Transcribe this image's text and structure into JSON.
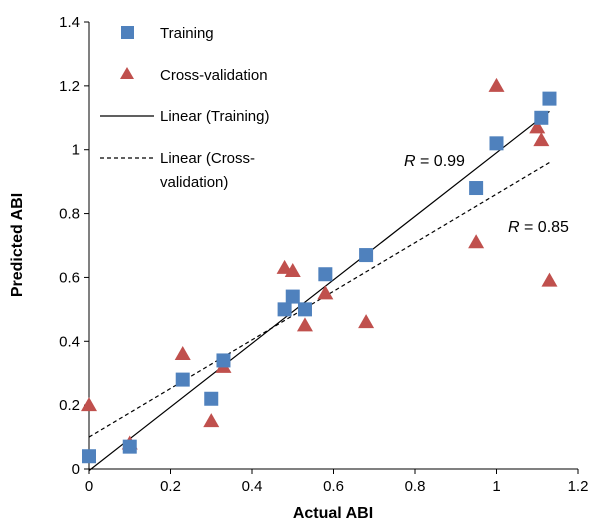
{
  "chart_data": {
    "type": "scatter",
    "xlabel": "Actual ABI",
    "ylabel": "Predicted ABI",
    "xlim": [
      0,
      1.2
    ],
    "ylim": [
      0,
      1.4
    ],
    "x_ticks": [
      "0",
      "0.2",
      "0.4",
      "0.6",
      "0.8",
      "1",
      "1.2"
    ],
    "y_ticks": [
      "0",
      "0.2",
      "0.4",
      "0.6",
      "0.8",
      "1",
      "1.2",
      "1.4"
    ],
    "grid": false,
    "legend_position": "top-left",
    "series": [
      {
        "name": "Training",
        "marker": "square",
        "color": "#4f81bd",
        "points": [
          [
            0.0,
            0.04
          ],
          [
            0.1,
            0.07
          ],
          [
            0.23,
            0.28
          ],
          [
            0.3,
            0.22
          ],
          [
            0.33,
            0.34
          ],
          [
            0.48,
            0.5
          ],
          [
            0.5,
            0.54
          ],
          [
            0.53,
            0.5
          ],
          [
            0.58,
            0.61
          ],
          [
            0.68,
            0.67
          ],
          [
            0.95,
            0.88
          ],
          [
            1.0,
            1.02
          ],
          [
            1.11,
            1.1
          ],
          [
            1.13,
            1.16
          ]
        ]
      },
      {
        "name": "Cross-validation",
        "marker": "triangle",
        "color": "#c0504d",
        "points": [
          [
            0.0,
            0.2
          ],
          [
            0.1,
            0.08
          ],
          [
            0.23,
            0.36
          ],
          [
            0.3,
            0.15
          ],
          [
            0.33,
            0.32
          ],
          [
            0.48,
            0.63
          ],
          [
            0.5,
            0.62
          ],
          [
            0.53,
            0.45
          ],
          [
            0.58,
            0.55
          ],
          [
            0.68,
            0.46
          ],
          [
            0.95,
            0.71
          ],
          [
            1.0,
            1.2
          ],
          [
            1.1,
            1.07
          ],
          [
            1.11,
            1.03
          ],
          [
            1.13,
            0.59
          ]
        ]
      }
    ],
    "trendlines": [
      {
        "name": "Linear (Training)",
        "style": "solid",
        "x": [
          0,
          1.13
        ],
        "y": [
          -0.005,
          1.12
        ]
      },
      {
        "name": "Linear (Cross-validation)",
        "style": "dashed",
        "x": [
          0,
          1.13
        ],
        "y": [
          0.1,
          0.96
        ]
      }
    ],
    "legend": {
      "training": "Training",
      "cross_validation": "Cross-validation",
      "linear_training": "Linear (Training)",
      "linear_cv_line1": "Linear (Cross-",
      "linear_cv_line2": "validation)"
    },
    "annotations": [
      {
        "italic": "R",
        "text": " = 0.99"
      },
      {
        "italic": "R",
        "text": " = 0.85"
      }
    ]
  }
}
